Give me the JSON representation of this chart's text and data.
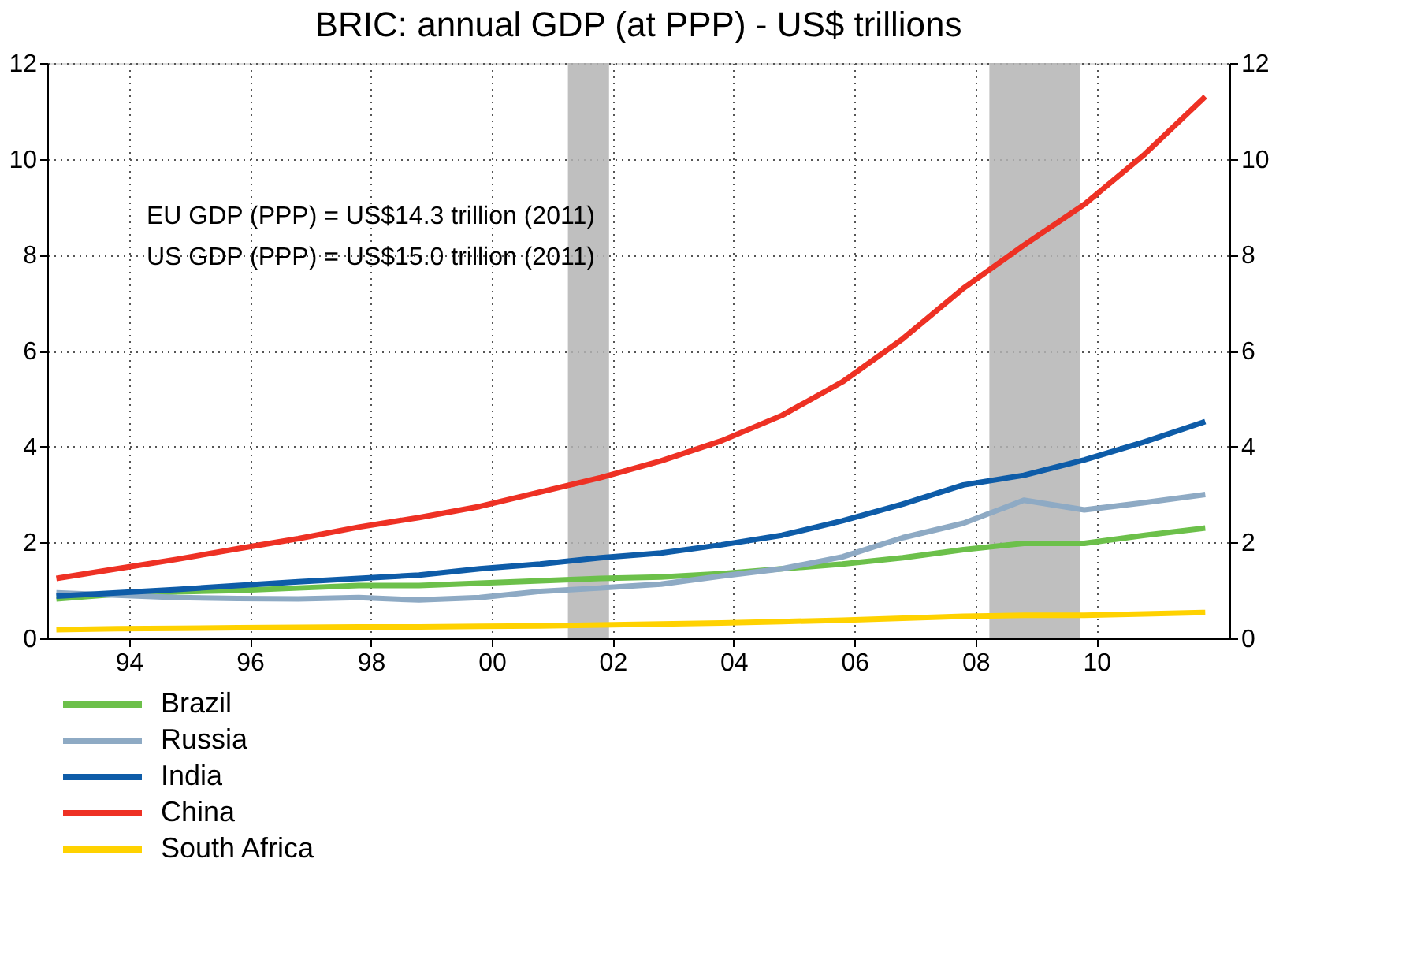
{
  "chart_data": {
    "type": "line",
    "title": "BRIC: annual GDP (at PPP) - US$ trillions",
    "x": [
      1992.8,
      1993.8,
      1994.8,
      1995.8,
      1996.8,
      1997.8,
      1998.8,
      1999.8,
      2000.8,
      2001.8,
      2002.8,
      2003.8,
      2004.8,
      2005.8,
      2006.8,
      2007.8,
      2008.8,
      2009.8,
      2010.8,
      2011.8
    ],
    "series": [
      {
        "name": "Brazil",
        "color": "#6cc04a",
        "values": [
          0.82,
          0.92,
          0.97,
          1.0,
          1.05,
          1.1,
          1.1,
          1.15,
          1.2,
          1.25,
          1.28,
          1.35,
          1.45,
          1.55,
          1.68,
          1.85,
          1.98,
          1.98,
          2.15,
          2.3
        ]
      },
      {
        "name": "Russia",
        "color": "#8eaac4",
        "values": [
          0.95,
          0.9,
          0.85,
          0.83,
          0.82,
          0.85,
          0.8,
          0.85,
          0.98,
          1.05,
          1.13,
          1.3,
          1.45,
          1.7,
          2.1,
          2.4,
          2.88,
          2.68,
          2.83,
          3.0
        ]
      },
      {
        "name": "India",
        "color": "#0e5ca8",
        "values": [
          0.88,
          0.95,
          1.02,
          1.1,
          1.18,
          1.25,
          1.32,
          1.45,
          1.55,
          1.68,
          1.78,
          1.95,
          2.15,
          2.45,
          2.8,
          3.2,
          3.4,
          3.72,
          4.1,
          4.52
        ]
      },
      {
        "name": "China",
        "color": "#ee3124",
        "values": [
          1.25,
          1.45,
          1.65,
          1.87,
          2.08,
          2.32,
          2.52,
          2.75,
          3.05,
          3.35,
          3.7,
          4.12,
          4.65,
          5.35,
          6.25,
          7.3,
          8.2,
          9.05,
          10.1,
          11.3
        ]
      },
      {
        "name": "South Africa",
        "color": "#ffd200",
        "values": [
          0.18,
          0.2,
          0.21,
          0.22,
          0.23,
          0.24,
          0.24,
          0.25,
          0.26,
          0.28,
          0.3,
          0.32,
          0.35,
          0.38,
          0.42,
          0.46,
          0.48,
          0.48,
          0.51,
          0.54
        ]
      }
    ],
    "xlim": [
      1992.65,
      2012.2
    ],
    "xticks": [
      {
        "value": 1994,
        "label": "94"
      },
      {
        "value": 1996,
        "label": "96"
      },
      {
        "value": 1998,
        "label": "98"
      },
      {
        "value": 2000,
        "label": "00"
      },
      {
        "value": 2002,
        "label": "02"
      },
      {
        "value": 2004,
        "label": "04"
      },
      {
        "value": 2006,
        "label": "06"
      },
      {
        "value": 2008,
        "label": "08"
      },
      {
        "value": 2010,
        "label": "10"
      }
    ],
    "ylim": [
      0,
      12
    ],
    "yticks": [
      0,
      2,
      4,
      6,
      8,
      10,
      12
    ],
    "y2lim": [
      0,
      12
    ],
    "y2ticks": [
      0,
      2,
      4,
      6,
      8,
      10,
      12
    ],
    "bands": [
      {
        "axis": "x",
        "from": 2001.26,
        "to": 2001.94,
        "color": "#b4b4b4"
      },
      {
        "axis": "x",
        "from": 2008.23,
        "to": 2009.73,
        "color": "#b4b4b4"
      }
    ],
    "annotations": [
      "EU GDP (PPP) = US$14.3 trillion (2011)",
      "US GDP (PPP) = US$15.0 trillion (2011)"
    ],
    "grid": true,
    "legend": "bottom left",
    "line_style": "solid",
    "marker": "none"
  }
}
